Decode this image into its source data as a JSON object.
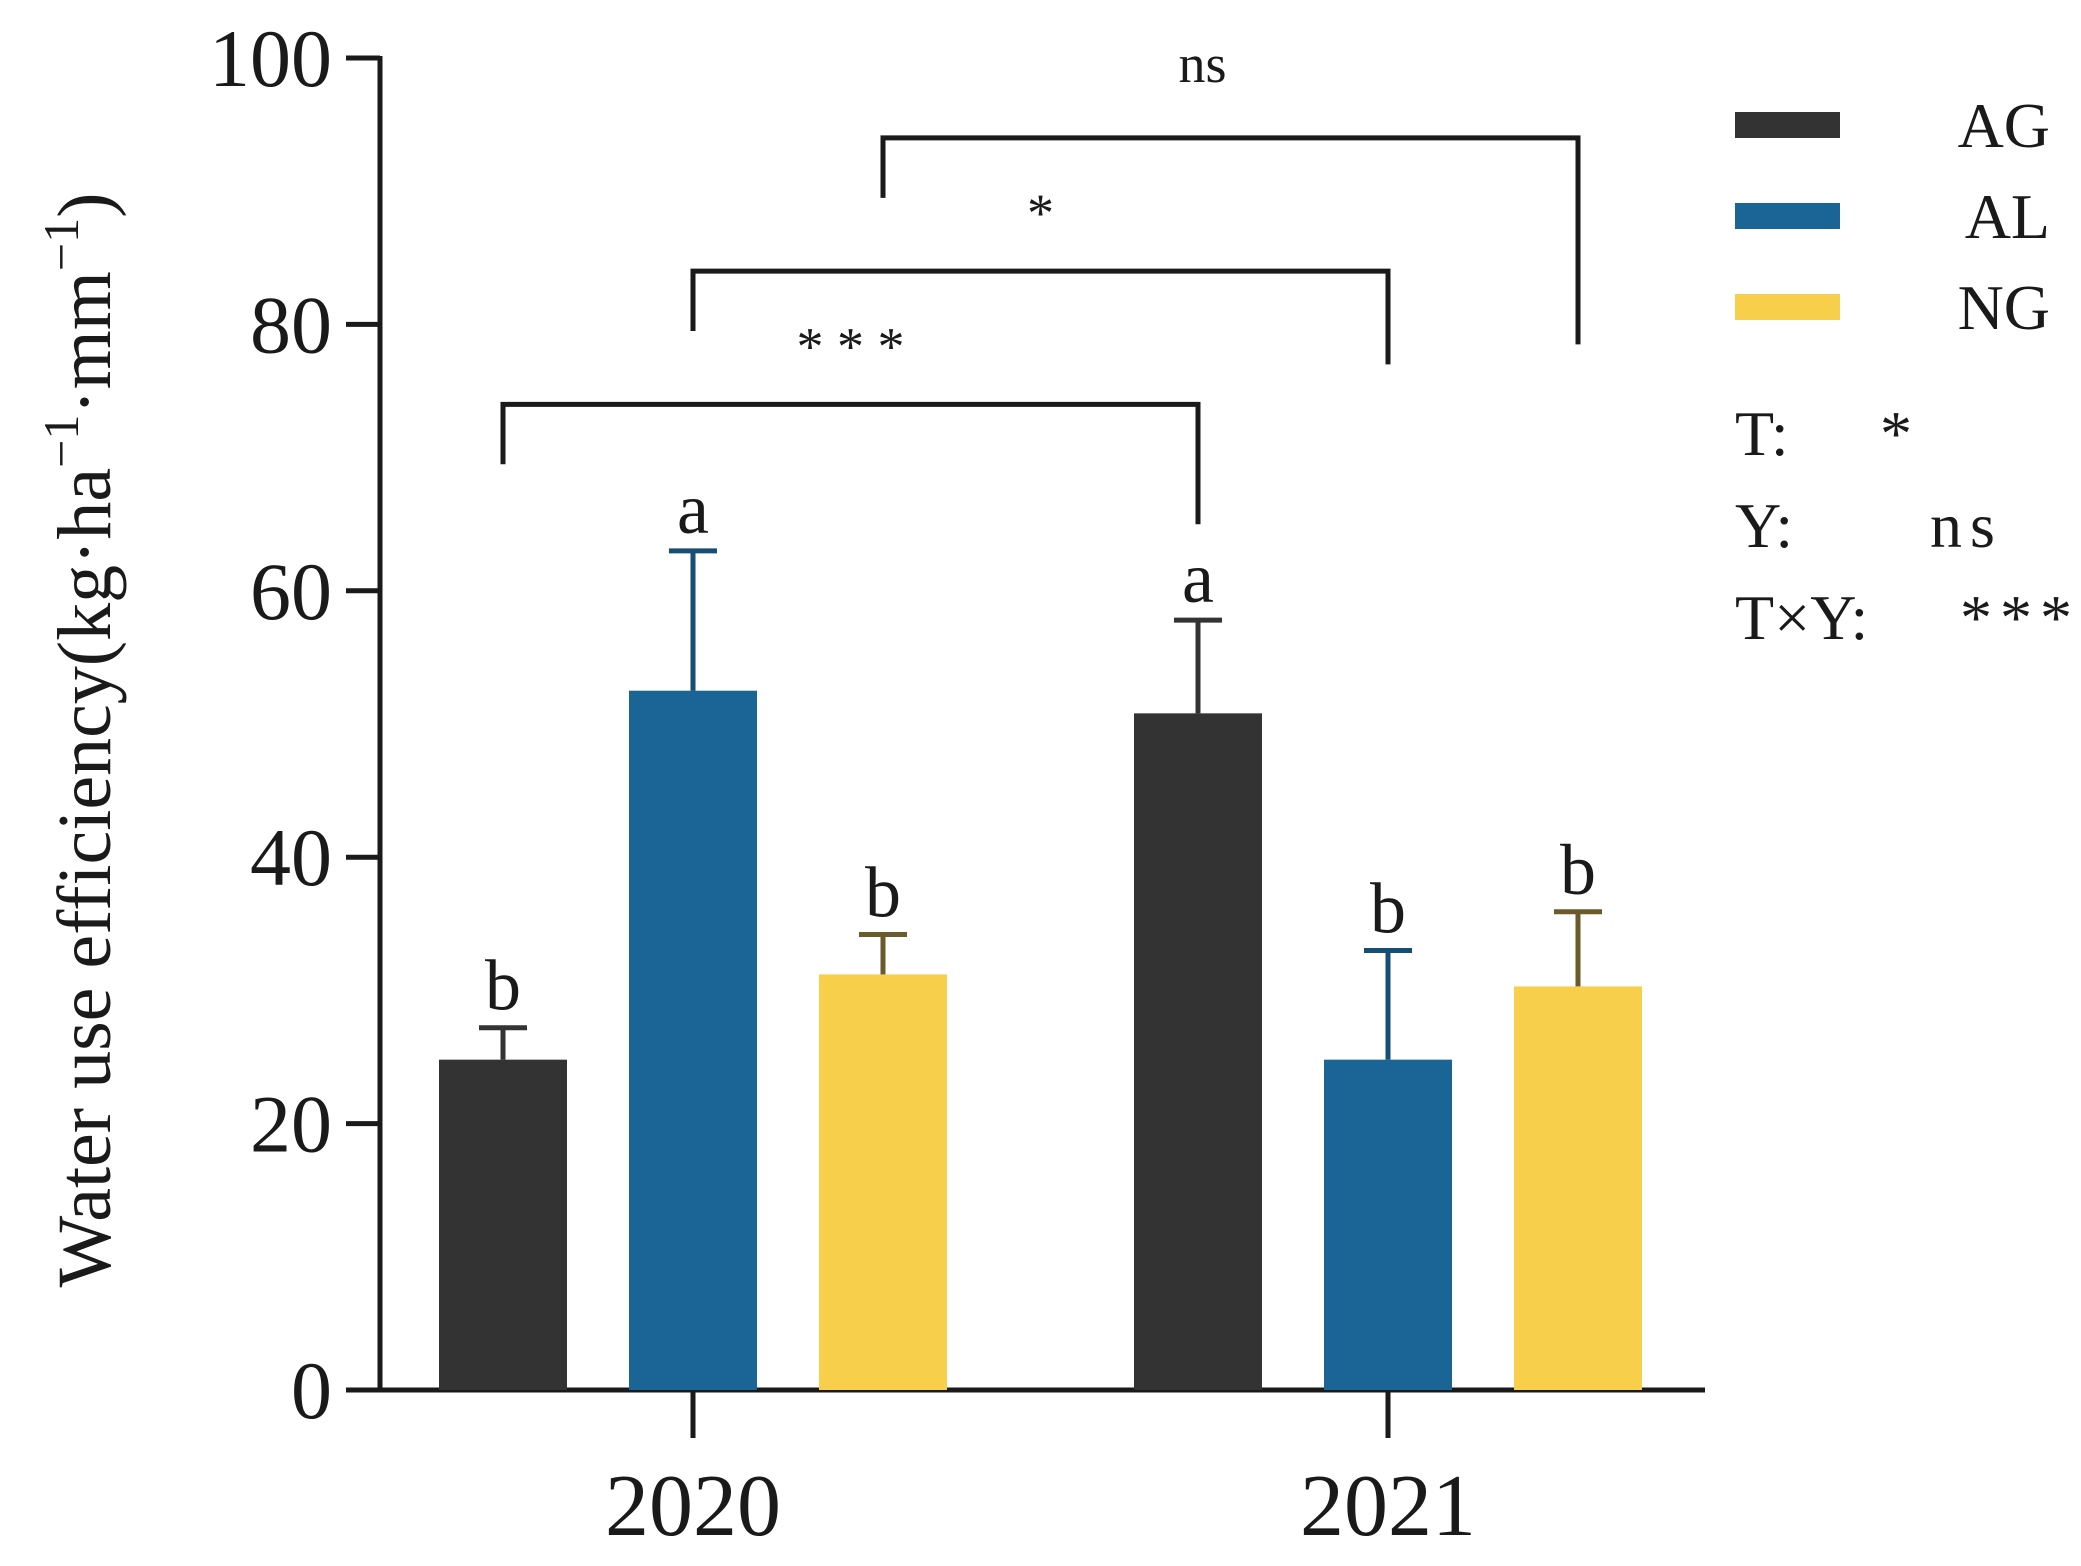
{
  "chart_data": {
    "type": "bar",
    "title": "",
    "xlabel": "",
    "ylabel_parts": {
      "prefix": "Water use efficiency(kg·ha",
      "sup1": "−1",
      "middle": "·mm",
      "sup2": "−1",
      "suffix": ")"
    },
    "ylim": [
      0,
      100
    ],
    "yticks": [
      "0",
      "20",
      "40",
      "60",
      "80",
      "100"
    ],
    "categories": [
      "2020",
      "2021"
    ],
    "series": [
      {
        "name": "AG",
        "color": "#333333",
        "values": [
          24.8,
          50.8
        ],
        "errors": [
          2.4,
          7.0
        ],
        "letters": [
          "b",
          "a"
        ]
      },
      {
        "name": "AL",
        "color": "#1b6496",
        "values": [
          52.5,
          24.8
        ],
        "errors": [
          10.5,
          8.2
        ],
        "letters": [
          "a",
          "b"
        ]
      },
      {
        "name": "NG",
        "color": "#f8cf4a",
        "values": [
          31.2,
          30.3
        ],
        "errors": [
          3.0,
          5.6
        ],
        "letters": [
          "b",
          "b"
        ]
      }
    ],
    "error_bar_colors": [
      "#333333",
      "#174e73",
      "#6b5a2a"
    ],
    "comparisons": [
      {
        "series": "AG",
        "label": "* * *",
        "bracket_level": 74
      },
      {
        "series": "AL",
        "label": "*",
        "bracket_level": 84
      },
      {
        "series": "NG",
        "label": "ns",
        "bracket_level": 94
      }
    ],
    "legend_position": "right",
    "stats": [
      {
        "key": "T",
        "sep": ":",
        "value": "*"
      },
      {
        "key": "Y",
        "sep": ":",
        "value": "ns"
      },
      {
        "key": "T×Y",
        "sep": ":",
        "value": "***"
      }
    ]
  }
}
